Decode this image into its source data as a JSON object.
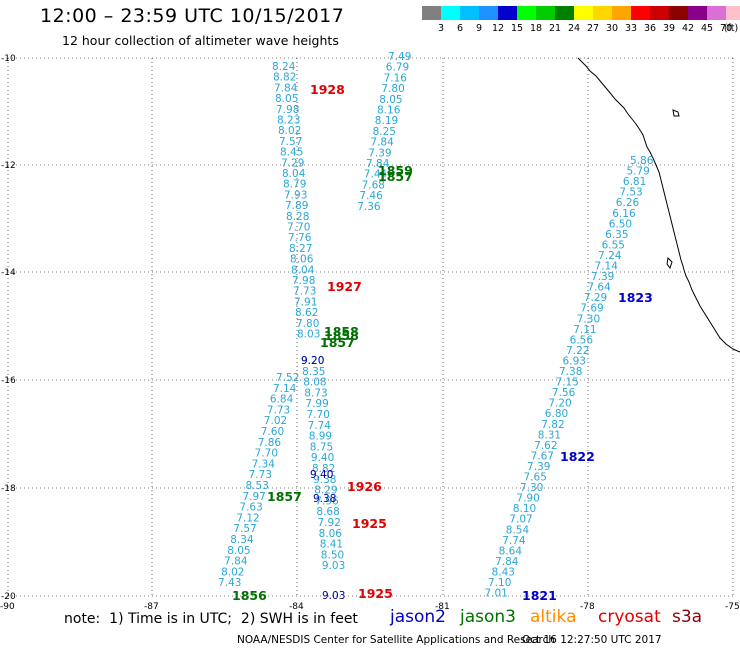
{
  "header": {
    "title": "12:00 – 23:59 UTC 10/15/2017",
    "subtitle": "12 hour collection of altimeter wave heights"
  },
  "legend": {
    "unit": "(ft)",
    "swatches": [
      {
        "color": "#808080",
        "label": ""
      },
      {
        "color": "#00ffff",
        "label": "3"
      },
      {
        "color": "#00bfff",
        "label": "6"
      },
      {
        "color": "#1e90ff",
        "label": "9"
      },
      {
        "color": "#0000cd",
        "label": "12"
      },
      {
        "color": "#00ff00",
        "label": "15"
      },
      {
        "color": "#00cc00",
        "label": "18"
      },
      {
        "color": "#008000",
        "label": "21"
      },
      {
        "color": "#ffff00",
        "label": "24"
      },
      {
        "color": "#ffd700",
        "label": "27"
      },
      {
        "color": "#ffa500",
        "label": "30"
      },
      {
        "color": "#ff0000",
        "label": "33"
      },
      {
        "color": "#cc0000",
        "label": "36"
      },
      {
        "color": "#8b0000",
        "label": "39"
      },
      {
        "color": "#8b008b",
        "label": "42"
      },
      {
        "color": "#da70d6",
        "label": "45"
      },
      {
        "color": "#ffc0cb",
        "label": "70"
      },
      {
        "color": "#000000",
        "label": ""
      }
    ]
  },
  "axes": {
    "lat_labels": [
      "-10",
      "-12",
      "-14",
      "-16",
      "-18",
      "-20"
    ],
    "lon_labels": [
      "-90",
      "-87",
      "-84",
      "-81",
      "-78",
      "-75"
    ]
  },
  "tracks": {
    "track_a": [
      "8.24",
      "8.82",
      "7.84",
      "8.05",
      "7.98",
      "8.23",
      "8.02",
      "7.57",
      "8.45",
      "7.29",
      "8.04",
      "8.79",
      "7.93",
      "7.89",
      "8.28",
      "7.70",
      "7.76",
      "8.27",
      "8.06",
      "8.04",
      "7.98",
      "7.73",
      "7.91",
      "8.62",
      "7.80",
      "8.03"
    ],
    "track_b": [
      "9.20",
      "8.35",
      "8.08",
      "8.73",
      "7.99",
      "7.70",
      "7.74",
      "8.99",
      "8.75",
      "9.40",
      "8.82",
      "9.38",
      "8.29",
      "7.96",
      "8.68",
      "7.92",
      "8.06",
      "8.41",
      "8.50",
      "9.03"
    ],
    "track_c": [
      "7.52",
      "7.14",
      "6.84",
      "7.73",
      "7.02",
      "7.60",
      "7.86",
      "7.70",
      "7.34",
      "7.73",
      "8.53",
      "7.97",
      "7.63",
      "7.12",
      "7.57",
      "8.34",
      "8.05",
      "7.84",
      "8.02",
      "7.43"
    ],
    "track_d": [
      "5.86",
      "5.79",
      "6.81",
      "7.53",
      "6.26",
      "6.16",
      "6.50",
      "6.35",
      "6.55",
      "7.24",
      "7.14",
      "7.39",
      "7.64",
      "7.29",
      "7.69",
      "7.30",
      "7.11",
      "6.56",
      "7.22",
      "6.93",
      "7.38",
      "7.15",
      "7.56",
      "7.20",
      "6.80",
      "7.82",
      "8.31",
      "7.62",
      "7.67",
      "7.39",
      "7.65",
      "7.30",
      "7.90",
      "8.10",
      "7.07",
      "8.54",
      "7.74",
      "8.64",
      "7.84",
      "8.43",
      "7.10",
      "7.01"
    ],
    "track_e_top": [
      "7.49",
      "6.79",
      "7.16",
      "7.80",
      "8.05",
      "8.16",
      "8.19",
      "8.25",
      "7.84",
      "7.39",
      "7.84",
      "7.44",
      "7.68",
      "7.46",
      "7.36"
    ]
  },
  "pass_times": [
    {
      "label": "1928",
      "color": "#e00000"
    },
    {
      "label": "1859",
      "color": "#007000"
    },
    {
      "label": "1857",
      "color": "#007000"
    },
    {
      "label": "1927",
      "color": "#e00000"
    },
    {
      "label": "1858",
      "color": "#007000"
    },
    {
      "label": "1858",
      "color": "#007000"
    },
    {
      "label": "1857",
      "color": "#007000"
    },
    {
      "label": "1823",
      "color": "#0000cc"
    },
    {
      "label": "1822",
      "color": "#0000cc"
    },
    {
      "label": "1926",
      "color": "#e00000"
    },
    {
      "label": "1857",
      "color": "#007000"
    },
    {
      "label": "1925",
      "color": "#e00000"
    },
    {
      "label": "1856",
      "color": "#007000"
    },
    {
      "label": "1925",
      "color": "#e00000"
    },
    {
      "label": "1821",
      "color": "#0000cc"
    }
  ],
  "footer": {
    "note": "note:  1) Time is in UTC;  2) SWH is in feet",
    "satellites": [
      {
        "label": "jason2",
        "color": "#0000cc"
      },
      {
        "label": "jason3",
        "color": "#007000"
      },
      {
        "label": "altika",
        "color": "#ff8c00"
      },
      {
        "label": "cryosat",
        "color": "#e00000"
      },
      {
        "label": "s3a",
        "color": "#8b0000"
      }
    ],
    "credit": "NOAA/NESDIS Center for Satellite Applications and Research",
    "timestamp": "Oct 16 12:27:50 UTC 2017"
  }
}
